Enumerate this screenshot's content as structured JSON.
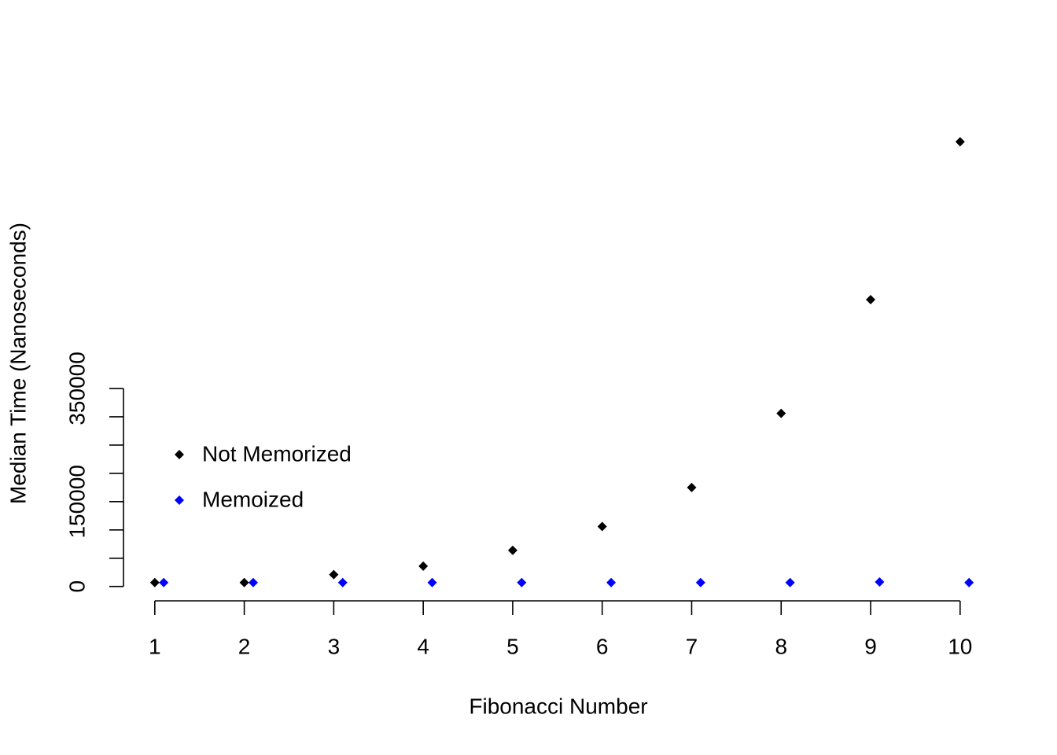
{
  "chart_data": {
    "type": "scatter",
    "x_label": "Fibonacci Number",
    "y_label": "Median Time (Nanoseconds)",
    "series": [
      {
        "name": "Not Memorized",
        "color": "#000000",
        "x": [
          1,
          2,
          3,
          4,
          5,
          6,
          7,
          8,
          9,
          10
        ],
        "values": [
          7000,
          7000,
          21000,
          36000,
          64000,
          106000,
          175000,
          306000,
          507000,
          786000
        ]
      },
      {
        "name": "Memoized",
        "color": "#0000ff",
        "x": [
          1.1,
          2.1,
          3.1,
          4.1,
          5.1,
          6.1,
          7.1,
          8.1,
          9.1,
          10.1
        ],
        "values": [
          7000,
          7000,
          7000,
          7000,
          7000,
          7000,
          7000,
          7000,
          8000,
          7000
        ]
      }
    ],
    "xlim": [
      0.65,
      10.45
    ],
    "ylim": [
      -24000,
      817000
    ],
    "xticks": [
      1,
      2,
      3,
      4,
      5,
      6,
      7,
      8,
      9,
      10
    ],
    "yticks": [
      0,
      150000,
      350000
    ],
    "yminorticks": [
      50000,
      100000,
      200000,
      250000,
      300000
    ],
    "legend": "left"
  }
}
